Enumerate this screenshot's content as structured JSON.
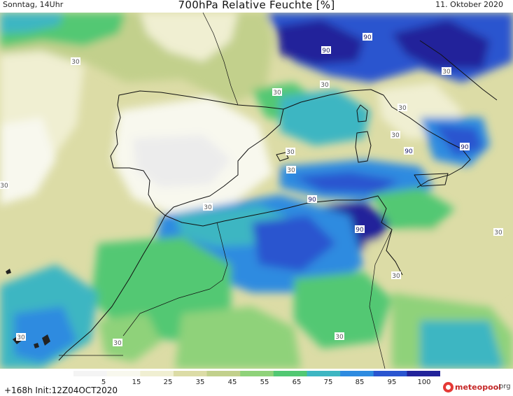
{
  "header": {
    "valid_time": "Sonntag, 14Uhr",
    "title": "700hPa Relative Feuchte [%]",
    "date": "11. Oktober 2020"
  },
  "footer": {
    "init": "+168h  Init:12Z04OCT2020",
    "logo_brand": "meteopool",
    "logo_tld": ".org"
  },
  "legend": {
    "ticks": [
      "5",
      "15",
      "25",
      "35",
      "45",
      "55",
      "65",
      "75",
      "85",
      "95",
      "100"
    ],
    "colors": [
      "#f4f4f4",
      "#f8f8ee",
      "#f0efd2",
      "#dcdca6",
      "#c2d08c",
      "#8fd27a",
      "#52c873",
      "#3eb6c2",
      "#2e8be0",
      "#2a55cf",
      "#22239a"
    ]
  },
  "map": {
    "contour_labels": [
      "30",
      "30",
      "90",
      "90",
      "30",
      "30",
      "30",
      "90",
      "90",
      "30",
      "30",
      "30",
      "90",
      "90",
      "30",
      "30",
      "30",
      "30",
      "30",
      "30",
      "30"
    ]
  }
}
